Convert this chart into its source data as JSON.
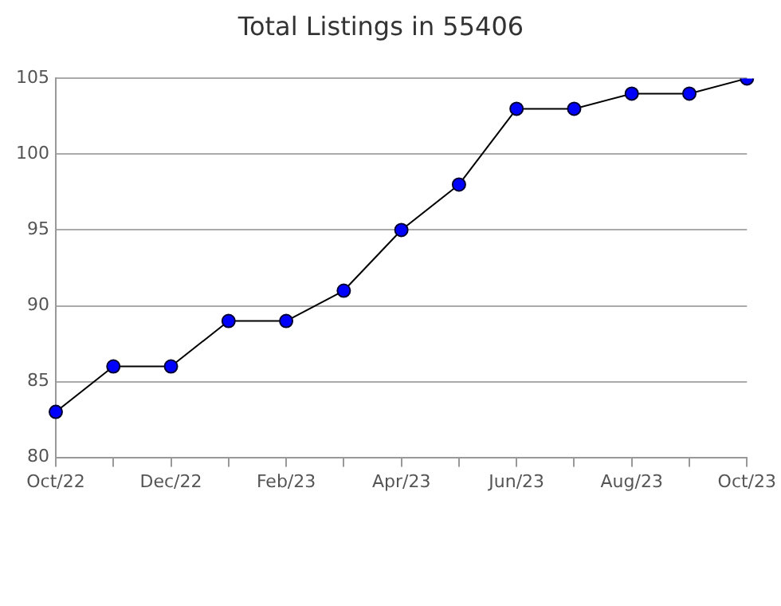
{
  "chart_data": {
    "type": "line",
    "title": "Total Listings in 55406",
    "categories": [
      "Oct/22",
      null,
      "Dec/22",
      null,
      "Feb/23",
      null,
      "Apr/23",
      null,
      "Jun/23",
      null,
      "Aug/23",
      null,
      "Oct/23"
    ],
    "series": [
      {
        "color": "#0000ff",
        "values": [
          83,
          86,
          86,
          89,
          89,
          91,
          95,
          98,
          103,
          103,
          104,
          104,
          105
        ]
      }
    ],
    "ylim": [
      80,
      105
    ],
    "yticks": [
      80,
      85,
      90,
      95,
      100,
      105
    ],
    "grid": "y",
    "legend": false,
    "marker": "circle",
    "line_style": "solid"
  }
}
